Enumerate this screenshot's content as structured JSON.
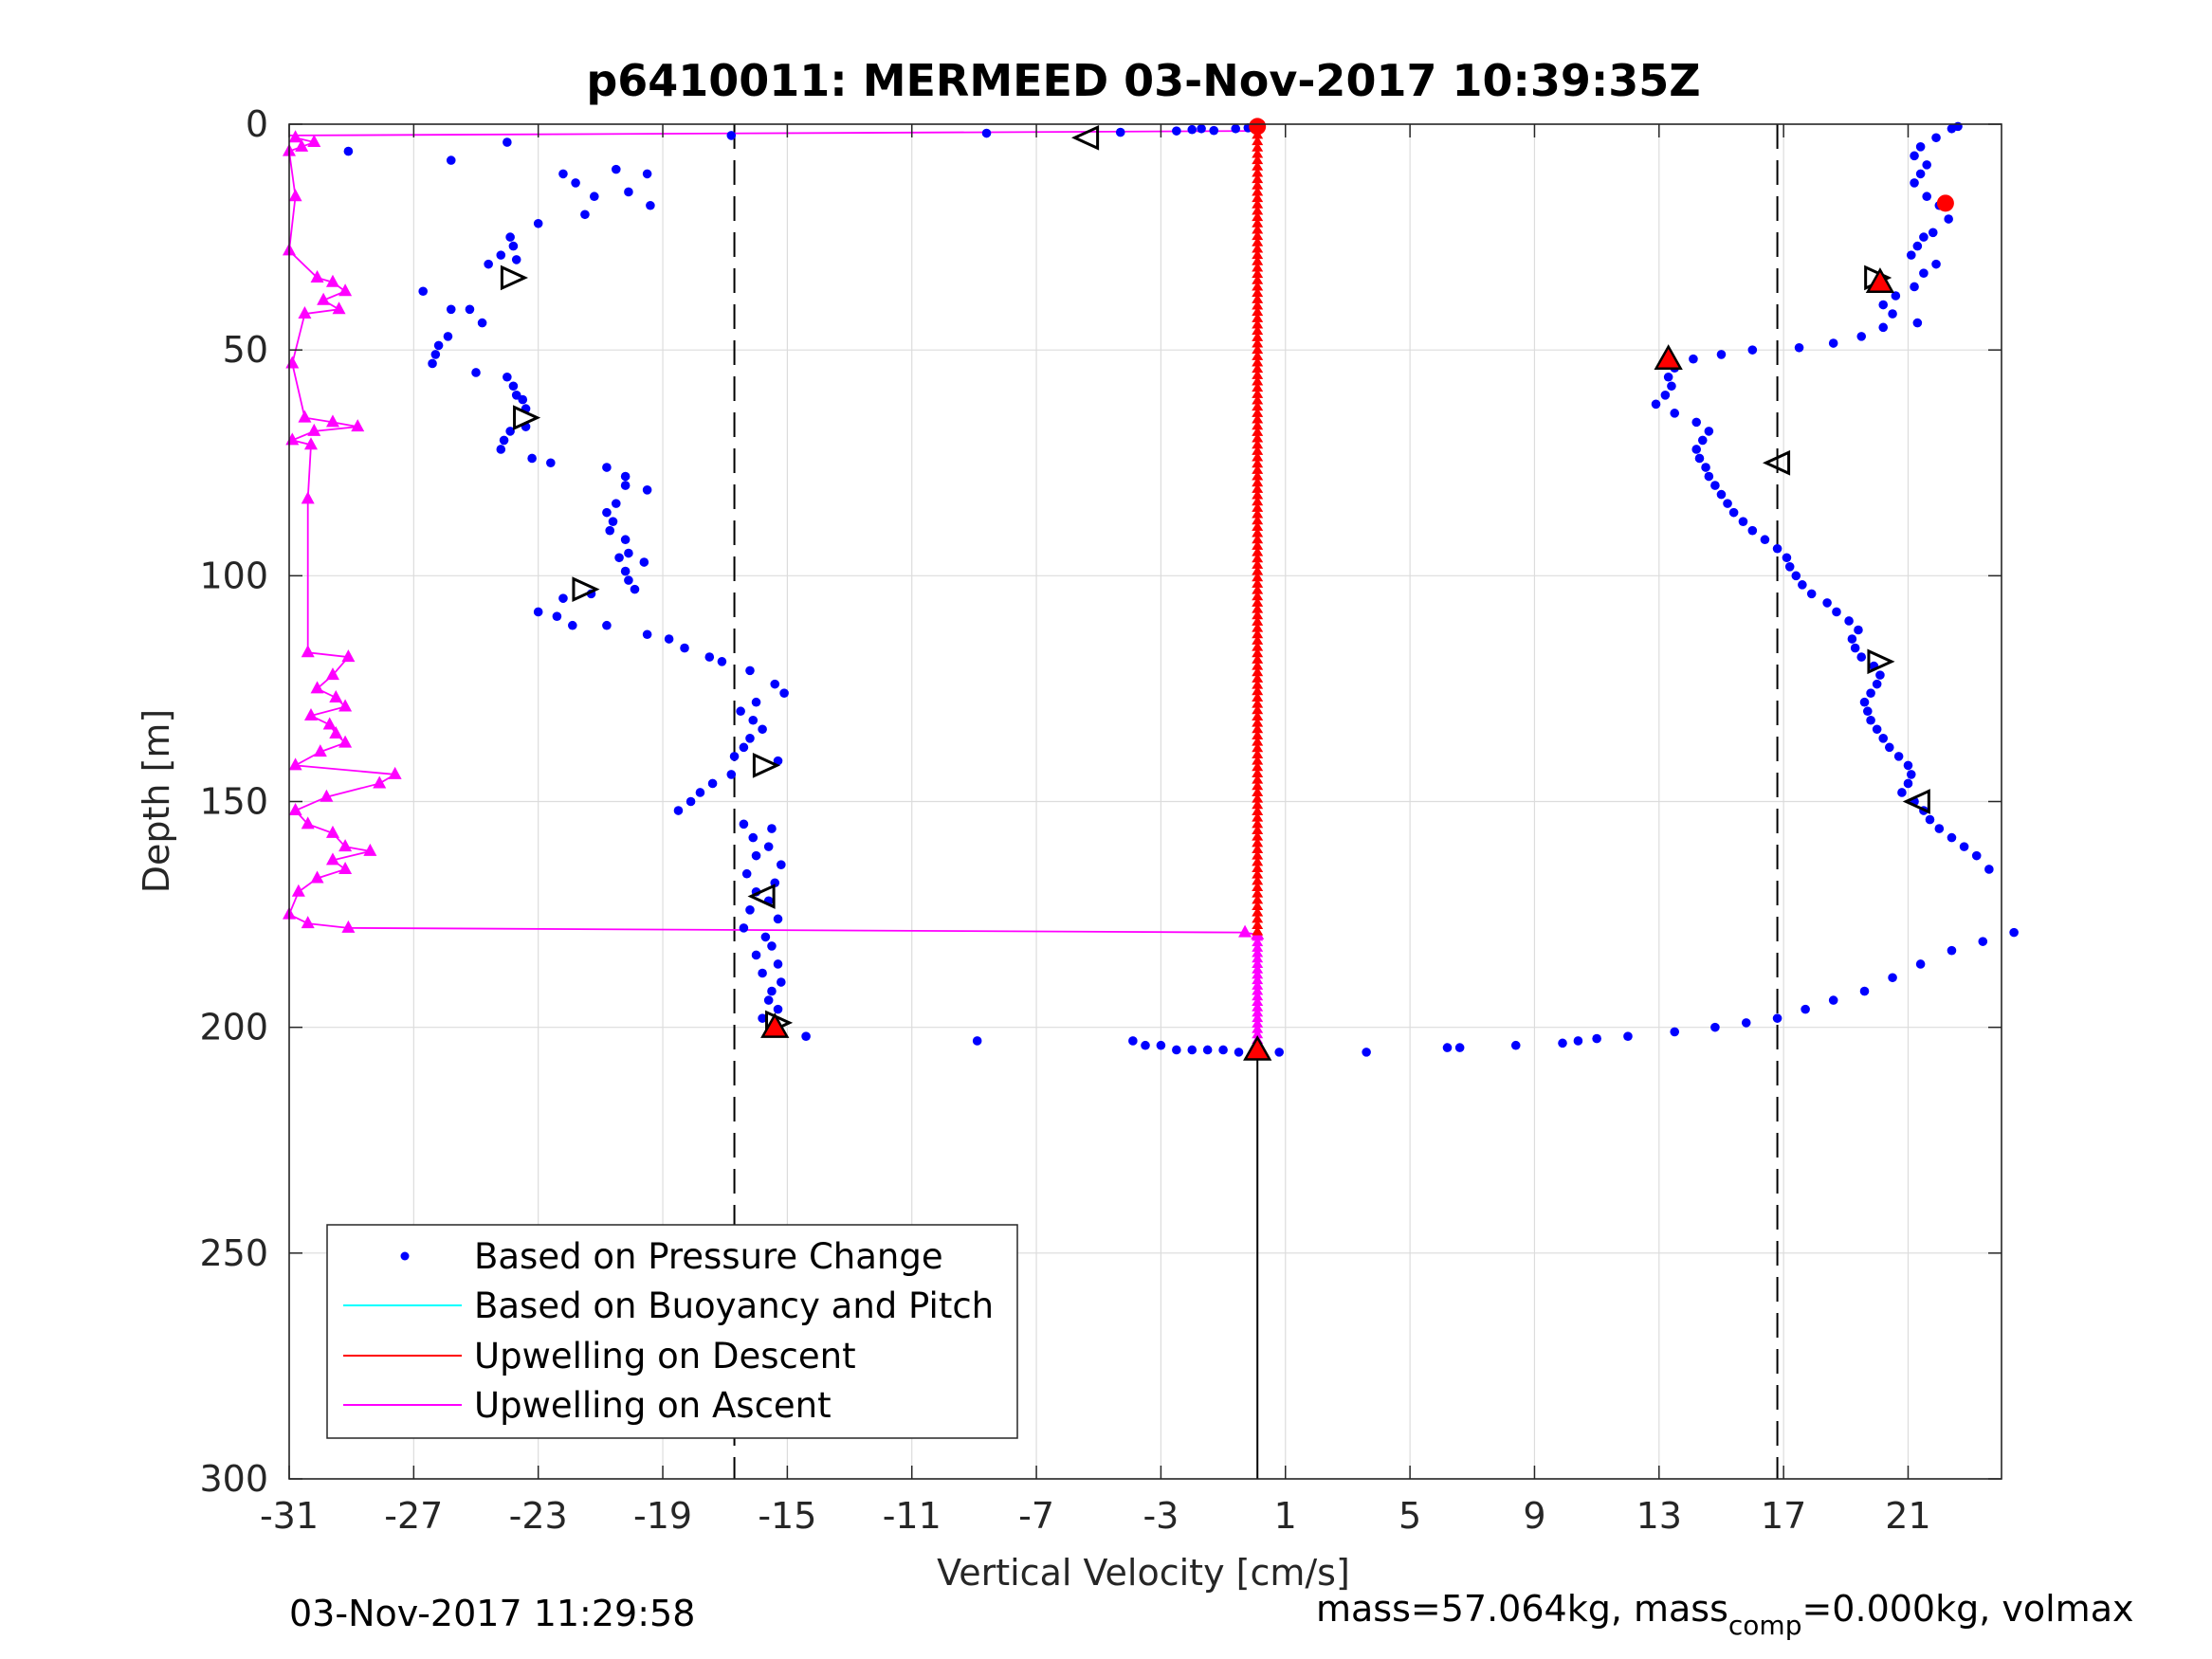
{
  "chart_data": {
    "type": "scatter",
    "title": "p6410011: MERMEED 03-Nov-2017 10:39:35Z",
    "xlabel": "Vertical Velocity [cm/s]",
    "ylabel": "Depth [m]",
    "xlim": [
      -31,
      24
    ],
    "ylim": [
      0,
      300
    ],
    "y_reversed": true,
    "grid": true,
    "xticks": [
      -31,
      -27,
      -23,
      -19,
      -15,
      -11,
      -7,
      -3,
      1,
      5,
      9,
      13,
      17,
      21
    ],
    "yticks": [
      0,
      50,
      100,
      150,
      200,
      250,
      300
    ],
    "dashed_lines_x": [
      -16.7,
      16.8
    ],
    "bottom_marker_x": 0.1,
    "colors": {
      "pressure": "#0000ff",
      "buoyancy": "#00ffff",
      "descent": "#ff0000",
      "ascent": "#ff00ff",
      "grid": "#dcdcdc"
    },
    "legend_location": "bottom-left",
    "legend": [
      "Based on Pressure Change",
      "Based on Buoyancy and Pitch",
      "Upwelling on Descent",
      "Upwelling on Ascent"
    ],
    "series": [
      {
        "name": "Based on Pressure Change",
        "style": "dots",
        "points": [
          [
            -16.8,
            2.5
          ],
          [
            -8.6,
            2
          ],
          [
            -4.3,
            1.8
          ],
          [
            -2.5,
            1.5
          ],
          [
            -2,
            1.2
          ],
          [
            -1.7,
            1
          ],
          [
            -1.3,
            1.4
          ],
          [
            -0.6,
            1
          ],
          [
            -0.2,
            0.8
          ],
          [
            -29.1,
            6
          ],
          [
            -24,
            4
          ],
          [
            -25.8,
            8
          ],
          [
            -22.2,
            11
          ],
          [
            -21.8,
            13
          ],
          [
            -20.5,
            10
          ],
          [
            -19.5,
            11
          ],
          [
            -21.2,
            16
          ],
          [
            -19.4,
            18
          ],
          [
            -20.1,
            15
          ],
          [
            -21.5,
            20
          ],
          [
            -23,
            22
          ],
          [
            -23.9,
            25
          ],
          [
            -23.8,
            27
          ],
          [
            -24.2,
            29
          ],
          [
            -24.6,
            31
          ],
          [
            -23.7,
            30
          ],
          [
            -26.7,
            37
          ],
          [
            -25.8,
            41
          ],
          [
            -25.2,
            41
          ],
          [
            -24.8,
            44
          ],
          [
            -25.9,
            47
          ],
          [
            -26.2,
            49
          ],
          [
            -26.3,
            51
          ],
          [
            -26.4,
            53
          ],
          [
            -25,
            55
          ],
          [
            -24,
            56
          ],
          [
            -23.8,
            58
          ],
          [
            -23.7,
            60
          ],
          [
            -23.5,
            61
          ],
          [
            -23.4,
            63
          ],
          [
            -23.4,
            67
          ],
          [
            -23.9,
            68
          ],
          [
            -24.1,
            70
          ],
          [
            -24.2,
            72
          ],
          [
            -23.2,
            74
          ],
          [
            -22.6,
            75
          ],
          [
            -20.8,
            76
          ],
          [
            -20.2,
            78
          ],
          [
            -19.5,
            81
          ],
          [
            -20.2,
            80
          ],
          [
            -20.5,
            84
          ],
          [
            -20.8,
            86
          ],
          [
            -20.6,
            88
          ],
          [
            -20.7,
            90
          ],
          [
            -20.2,
            92
          ],
          [
            -20.1,
            95
          ],
          [
            -20.4,
            96
          ],
          [
            -19.6,
            97
          ],
          [
            -20.2,
            99
          ],
          [
            -20.1,
            101
          ],
          [
            -19.9,
            103
          ],
          [
            -21.3,
            104
          ],
          [
            -22.2,
            105
          ],
          [
            -23,
            108
          ],
          [
            -22.4,
            109
          ],
          [
            -21.9,
            111
          ],
          [
            -20.8,
            111
          ],
          [
            -19.5,
            113
          ],
          [
            -18.8,
            114
          ],
          [
            -18.3,
            116
          ],
          [
            -17.5,
            118
          ],
          [
            -17.1,
            119
          ],
          [
            -16.2,
            121
          ],
          [
            -15.4,
            124
          ],
          [
            -15.1,
            126
          ],
          [
            -16,
            128
          ],
          [
            -16.5,
            130
          ],
          [
            -16.1,
            132
          ],
          [
            -15.8,
            134
          ],
          [
            -16.2,
            136
          ],
          [
            -16.4,
            138
          ],
          [
            -16.7,
            140
          ],
          [
            -15.3,
            141
          ],
          [
            -16.8,
            144
          ],
          [
            -17.4,
            146
          ],
          [
            -17.8,
            148
          ],
          [
            -18.1,
            150
          ],
          [
            -18.5,
            152
          ],
          [
            -16.4,
            155
          ],
          [
            -15.5,
            156
          ],
          [
            -16.1,
            158
          ],
          [
            -15.6,
            160
          ],
          [
            -16,
            162
          ],
          [
            -15.2,
            164
          ],
          [
            -16.3,
            166
          ],
          [
            -15.4,
            168
          ],
          [
            -16,
            170
          ],
          [
            -15.6,
            172
          ],
          [
            -16.2,
            174
          ],
          [
            -15.3,
            176
          ],
          [
            -16.4,
            178
          ],
          [
            -15.7,
            180
          ],
          [
            -15.5,
            182
          ],
          [
            -16,
            184
          ],
          [
            -15.3,
            186
          ],
          [
            -15.8,
            188
          ],
          [
            -15.2,
            190
          ],
          [
            -15.5,
            192
          ],
          [
            -15.6,
            194
          ],
          [
            -15.3,
            196
          ],
          [
            -15.8,
            198
          ],
          [
            -14.4,
            202
          ],
          [
            -8.9,
            203
          ],
          [
            -3.9,
            203
          ],
          [
            -3.5,
            204
          ],
          [
            -3,
            204
          ],
          [
            -2.5,
            205
          ],
          [
            -2,
            205
          ],
          [
            -1.5,
            205
          ],
          [
            -1,
            205
          ],
          [
            -0.5,
            205.5
          ],
          [
            0.8,
            205.5
          ],
          [
            3.6,
            205.5
          ],
          [
            6.2,
            204.5
          ],
          [
            6.6,
            204.5
          ],
          [
            8.4,
            204
          ],
          [
            9.9,
            203.5
          ],
          [
            10.4,
            203
          ],
          [
            11,
            202.5
          ],
          [
            12,
            202
          ],
          [
            13.5,
            201
          ],
          [
            14.8,
            200
          ],
          [
            15.8,
            199
          ],
          [
            16.8,
            198
          ],
          [
            17.7,
            196
          ],
          [
            18.6,
            194
          ],
          [
            19.6,
            192
          ],
          [
            20.5,
            189
          ],
          [
            21.4,
            186
          ],
          [
            22.4,
            183
          ],
          [
            23.4,
            181
          ],
          [
            24.4,
            179
          ],
          [
            23.6,
            165
          ],
          [
            23.2,
            162
          ],
          [
            22.8,
            160
          ],
          [
            22.4,
            158
          ],
          [
            22,
            156
          ],
          [
            21.7,
            154
          ],
          [
            21.5,
            152
          ],
          [
            21.2,
            150
          ],
          [
            20.8,
            148
          ],
          [
            21,
            146
          ],
          [
            21.1,
            144
          ],
          [
            21,
            142
          ],
          [
            20.7,
            140
          ],
          [
            20.4,
            138
          ],
          [
            20.2,
            136
          ],
          [
            20,
            134
          ],
          [
            19.8,
            132
          ],
          [
            19.7,
            130
          ],
          [
            19.6,
            128
          ],
          [
            19.8,
            126
          ],
          [
            20,
            124
          ],
          [
            20.1,
            122
          ],
          [
            19.9,
            120
          ],
          [
            19.5,
            118
          ],
          [
            19.3,
            116
          ],
          [
            19.2,
            114
          ],
          [
            19.4,
            112
          ],
          [
            19.1,
            110
          ],
          [
            18.7,
            108
          ],
          [
            18.4,
            106
          ],
          [
            17.9,
            104
          ],
          [
            17.6,
            102
          ],
          [
            17.4,
            100
          ],
          [
            17.2,
            98
          ],
          [
            17.1,
            96
          ],
          [
            16.8,
            94
          ],
          [
            16.4,
            92
          ],
          [
            16,
            90
          ],
          [
            15.7,
            88
          ],
          [
            15.4,
            86
          ],
          [
            15.2,
            84
          ],
          [
            15,
            82
          ],
          [
            14.8,
            80
          ],
          [
            14.6,
            78
          ],
          [
            14.5,
            76
          ],
          [
            14.3,
            74
          ],
          [
            14.2,
            72
          ],
          [
            14.4,
            70
          ],
          [
            14.6,
            68
          ],
          [
            14.2,
            66
          ],
          [
            13.5,
            64
          ],
          [
            12.9,
            62
          ],
          [
            13.2,
            60
          ],
          [
            13.4,
            58
          ],
          [
            13.3,
            56
          ],
          [
            13.5,
            54
          ],
          [
            14.1,
            52
          ],
          [
            15,
            51
          ],
          [
            16,
            50
          ],
          [
            17.5,
            49.5
          ],
          [
            18.6,
            48.5
          ],
          [
            19.5,
            47
          ],
          [
            20.2,
            45
          ],
          [
            21.3,
            44
          ],
          [
            20.5,
            42
          ],
          [
            20.2,
            40
          ],
          [
            20.6,
            38
          ],
          [
            21.2,
            36
          ],
          [
            21.5,
            33
          ],
          [
            21.9,
            31
          ],
          [
            21.1,
            29
          ],
          [
            21.3,
            27
          ],
          [
            21.5,
            25
          ],
          [
            21.8,
            24
          ],
          [
            22.3,
            21
          ],
          [
            22,
            18
          ],
          [
            21.6,
            16
          ],
          [
            21.2,
            13
          ],
          [
            21.4,
            11
          ],
          [
            21.6,
            9
          ],
          [
            21.2,
            7
          ],
          [
            21.4,
            5
          ],
          [
            21.9,
            3
          ],
          [
            22.4,
            1
          ],
          [
            22.6,
            0.5
          ]
        ]
      },
      {
        "name": "Upwelling on Descent",
        "style": "dense-markers",
        "x_constant": 0.1,
        "depth_range": [
          0,
          206
        ]
      },
      {
        "name": "Upwelling on Ascent",
        "style": "triangle-line",
        "points": [
          [
            -30.8,
            3
          ],
          [
            -30.2,
            4
          ],
          [
            -30.6,
            5
          ],
          [
            -31,
            6
          ],
          [
            -30.8,
            16
          ],
          [
            -31,
            28
          ],
          [
            -30.1,
            34
          ],
          [
            -29.6,
            35
          ],
          [
            -29.2,
            37
          ],
          [
            -29.9,
            39
          ],
          [
            -29.4,
            41
          ],
          [
            -30.5,
            42
          ],
          [
            -30.9,
            53
          ],
          [
            -30.5,
            65
          ],
          [
            -29.6,
            66
          ],
          [
            -28.8,
            67
          ],
          [
            -30.2,
            68
          ],
          [
            -30.9,
            70
          ],
          [
            -30.3,
            71
          ],
          [
            -30.4,
            83
          ],
          [
            -30.4,
            117
          ],
          [
            -29.1,
            118
          ],
          [
            -29.6,
            122
          ],
          [
            -30.1,
            125
          ],
          [
            -29.5,
            127
          ],
          [
            -29.2,
            129
          ],
          [
            -30.3,
            131
          ],
          [
            -29.7,
            133
          ],
          [
            -29.5,
            135
          ],
          [
            -29.2,
            137
          ],
          [
            -30,
            139
          ],
          [
            -30.8,
            142
          ],
          [
            -27.6,
            144
          ],
          [
            -28.1,
            146
          ],
          [
            -29.8,
            149
          ],
          [
            -30.8,
            152
          ],
          [
            -30.4,
            155
          ],
          [
            -29.6,
            157
          ],
          [
            -29.2,
            160
          ],
          [
            -28.4,
            161
          ],
          [
            -29.6,
            163
          ],
          [
            -29.2,
            165
          ],
          [
            -30.1,
            167
          ],
          [
            -30.7,
            170
          ],
          [
            -31,
            175
          ],
          [
            -30.4,
            177
          ],
          [
            -29.1,
            178
          ],
          [
            -0.3,
            179
          ],
          [
            0.1,
            179.5
          ]
        ]
      },
      {
        "name": "depth markers",
        "style": "open-triangles",
        "points": [
          [
            -5.4,
            3,
            "left"
          ],
          [
            -23.8,
            34,
            "right"
          ],
          [
            -23.4,
            65,
            "right"
          ],
          [
            -21.5,
            103,
            "right"
          ],
          [
            -15.7,
            142,
            "right"
          ],
          [
            -15.8,
            171,
            "left"
          ],
          [
            -15.3,
            199,
            "right"
          ],
          [
            16.8,
            75,
            "left"
          ],
          [
            20.1,
            119,
            "right"
          ],
          [
            21.3,
            150,
            "left"
          ],
          [
            20,
            34,
            "right"
          ]
        ]
      },
      {
        "name": "filled triangles",
        "style": "red-triangles",
        "points": [
          [
            13.3,
            52
          ],
          [
            20.1,
            35
          ],
          [
            -15.4,
            200
          ],
          [
            0.1,
            205
          ]
        ]
      },
      {
        "name": "filled circles",
        "style": "red-circles",
        "points": [
          [
            22.2,
            17.5
          ],
          [
            0.1,
            0.5
          ]
        ]
      }
    ]
  },
  "footer": {
    "timestamp": "03-Nov-2017 11:29:58",
    "mass_text": "mass=57.064kg, mass",
    "mass_sub": "comp",
    "mass_rest": "=0.000kg, volmax"
  }
}
